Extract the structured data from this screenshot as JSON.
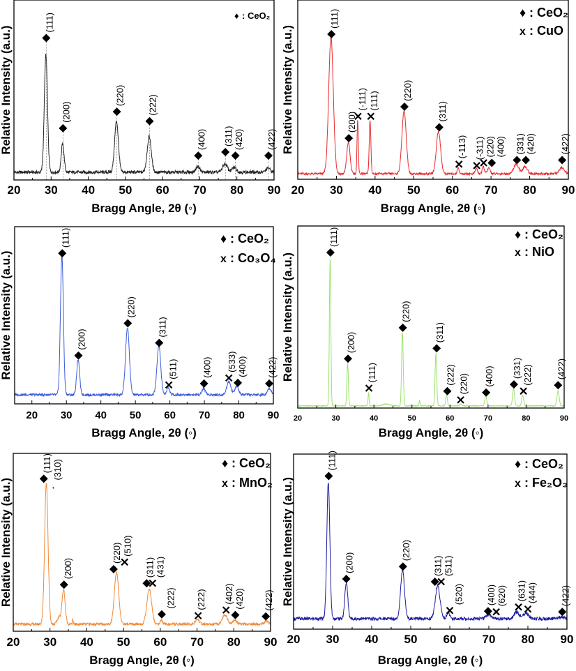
{
  "chart_data": [
    {
      "type": "line",
      "title": "",
      "series_name": "CeO2",
      "color": "#222222",
      "xlabel": "Bragg Angle, 2θ (◦)",
      "ylabel": "Relative Intensity (a.u.)",
      "xlim": [
        20,
        90
      ],
      "ylim": [
        -0.065,
        1.45
      ],
      "xticks": [
        20,
        30,
        40,
        50,
        60,
        70,
        80,
        90
      ],
      "noise": 0.014,
      "legend": [
        {
          "symbol": "♦",
          "text": ": CeO₂"
        }
      ],
      "legend_position": "top-right",
      "dashed_guides": true,
      "peaks": [
        [
          28.6,
          0.99,
          1.0
        ],
        [
          33.1,
          0.24,
          0.9
        ],
        [
          47.6,
          0.43,
          1.2
        ],
        [
          56.4,
          0.3,
          1.3
        ],
        [
          69.5,
          0.05,
          1.2
        ],
        [
          76.8,
          0.07,
          1.5
        ],
        [
          79.3,
          0.04,
          1.4
        ],
        [
          88.4,
          0.035,
          1.3
        ]
      ],
      "markers": [
        {
          "x": 28.7,
          "level": 1.13,
          "type": "d",
          "label": "(111)"
        },
        {
          "x": 33.2,
          "level": 0.37,
          "type": "d",
          "label": "(200)"
        },
        {
          "x": 47.7,
          "level": 0.51,
          "type": "d",
          "label": "(220)"
        },
        {
          "x": 56.5,
          "level": 0.43,
          "type": "d",
          "label": "(222)"
        },
        {
          "x": 69.6,
          "level": 0.14,
          "type": "d",
          "label": "(400)"
        },
        {
          "x": 76.9,
          "level": 0.17,
          "type": "d",
          "label": "(311)"
        },
        {
          "x": 79.6,
          "level": 0.14,
          "type": "d",
          "label": "(420)"
        },
        {
          "x": 88.5,
          "level": 0.14,
          "type": "d",
          "label": "(422)"
        }
      ]
    },
    {
      "type": "line",
      "title": "",
      "series_name": "CeO2-CuO",
      "color": "#e8282a",
      "xlabel": "Bragg Angle, 2θ (◦)",
      "ylabel": "Relative Intensity (a.u.)",
      "xlim": [
        20,
        90
      ],
      "ylim": [
        -0.04,
        1.27
      ],
      "xticks": [
        20,
        30,
        40,
        50,
        60,
        70,
        80,
        90
      ],
      "noise": 0.008,
      "legend": [
        {
          "symbol": "♦",
          "text": ": CeO₂"
        },
        {
          "symbol": "x",
          "text": ": CuO"
        }
      ],
      "legend_position": "top-right",
      "peaks": [
        [
          28.6,
          1.0,
          1.4
        ],
        [
          33.1,
          0.23,
          1.0
        ],
        [
          35.5,
          0.39,
          0.4
        ],
        [
          38.7,
          0.39,
          0.5
        ],
        [
          47.5,
          0.46,
          1.3
        ],
        [
          56.4,
          0.31,
          1.3
        ],
        [
          61.5,
          0.05,
          0.5
        ],
        [
          66.2,
          0.04,
          0.7
        ],
        [
          68.0,
          0.055,
          0.6
        ],
        [
          69.4,
          0.04,
          0.9
        ],
        [
          76.5,
          0.07,
          1.5
        ],
        [
          78.8,
          0.05,
          1.4
        ],
        [
          88.3,
          0.045,
          1.5
        ]
      ],
      "markers": [
        {
          "x": 28.7,
          "level": 1.02,
          "type": "d",
          "label": "(111)"
        },
        {
          "x": 33.2,
          "level": 0.26,
          "type": "d",
          "label": "(200)"
        },
        {
          "x": 35.6,
          "level": 0.42,
          "type": "x",
          "label": "(-111)"
        },
        {
          "x": 38.9,
          "level": 0.42,
          "type": "x",
          "label": "(111)"
        },
        {
          "x": 47.6,
          "level": 0.49,
          "type": "d",
          "label": "(220)"
        },
        {
          "x": 56.6,
          "level": 0.34,
          "type": "d",
          "label": "(311)"
        },
        {
          "x": 61.7,
          "level": 0.07,
          "type": "x",
          "label": "(-113)"
        },
        {
          "x": 66.3,
          "level": 0.06,
          "type": "x",
          "label": "(-311)"
        },
        {
          "x": 68.1,
          "level": 0.08,
          "type": "x",
          "label": "(220)"
        },
        {
          "x": 70.2,
          "level": 0.08,
          "type": "d",
          "label": "(400)"
        },
        {
          "x": 76.7,
          "level": 0.1,
          "type": "d",
          "label": "(331)"
        },
        {
          "x": 79.0,
          "level": 0.1,
          "type": "d",
          "label": "(420)"
        },
        {
          "x": 88.4,
          "level": 0.1,
          "type": "d",
          "label": "(422)"
        }
      ]
    },
    {
      "type": "line",
      "title": "",
      "series_name": "CeO2-Co3O4",
      "color": "#3a5bd9",
      "xlabel": "Bragg Angle, 2θ (◦)",
      "ylabel": "Relative Intensity (a.u.)",
      "xlim": [
        15,
        90
      ],
      "ylim": [
        -0.065,
        1.2
      ],
      "xticks": [
        20,
        30,
        40,
        50,
        60,
        70,
        80,
        90
      ],
      "noise": 0.009,
      "legend": [
        {
          "symbol": "♦",
          "text": ": CeO₂"
        },
        {
          "symbol": "x",
          "text": ": Co₃O₄"
        }
      ],
      "legend_position": "top-right",
      "peaks": [
        [
          28.7,
          1.0,
          1.0
        ],
        [
          33.4,
          0.25,
          1.0
        ],
        [
          47.7,
          0.48,
          1.3
        ],
        [
          56.8,
          0.35,
          1.3
        ],
        [
          59.5,
          0.05,
          1.0
        ],
        [
          69.8,
          0.045,
          1.2
        ],
        [
          77.1,
          0.095,
          1.4
        ],
        [
          79.4,
          0.06,
          1.2
        ],
        [
          88.8,
          0.045,
          1.3
        ]
      ],
      "markers": [
        {
          "x": 28.8,
          "level": 1.01,
          "type": "d",
          "label": "(111)"
        },
        {
          "x": 33.5,
          "level": 0.28,
          "type": "d",
          "label": "(200)"
        },
        {
          "x": 47.8,
          "level": 0.51,
          "type": "d",
          "label": "(220)"
        },
        {
          "x": 56.9,
          "level": 0.37,
          "type": "d",
          "label": "(311)"
        },
        {
          "x": 59.7,
          "level": 0.07,
          "type": "x",
          "label": "(511)"
        },
        {
          "x": 69.9,
          "level": 0.08,
          "type": "d",
          "label": "(400)"
        },
        {
          "x": 77.1,
          "level": 0.12,
          "type": "x",
          "label": "(533)"
        },
        {
          "x": 79.7,
          "level": 0.085,
          "type": "d",
          "label": "(400)"
        },
        {
          "x": 88.8,
          "level": 0.08,
          "type": "d",
          "label": "(422)"
        }
      ]
    },
    {
      "type": "line",
      "title": "",
      "series_name": "CeO2-NiO",
      "color": "#9be36b",
      "xlabel": "Bragg Angle, 2θ (◦)",
      "ylabel": "Relative Intensity (a.u.)",
      "xlim": [
        20,
        90
      ],
      "ylim": [
        -0.015,
        1.22
      ],
      "xticks": [
        20,
        30,
        40,
        50,
        60,
        70,
        80,
        90
      ],
      "noise": 0.003,
      "legend": [
        {
          "symbol": "♦",
          "text": ": CeO₂"
        },
        {
          "symbol": "x",
          "text": ": NiO"
        }
      ],
      "legend_position": "top-right",
      "peaks": [
        [
          28.5,
          1.0,
          0.45
        ],
        [
          33.1,
          0.29,
          0.45
        ],
        [
          38.6,
          0.09,
          0.3
        ],
        [
          43.2,
          0.012,
          2.0
        ],
        [
          47.5,
          0.5,
          0.5
        ],
        [
          52.0,
          0.04,
          0.25
        ],
        [
          56.3,
          0.36,
          0.5
        ],
        [
          59.1,
          0.075,
          0.5
        ],
        [
          62.8,
          0.012,
          0.6
        ],
        [
          69.4,
          0.066,
          0.6
        ],
        [
          76.7,
          0.12,
          0.6
        ],
        [
          79.1,
          0.07,
          0.6
        ],
        [
          88.4,
          0.1,
          0.7
        ]
      ],
      "markers": [
        {
          "x": 28.6,
          "level": 1.04,
          "type": "d",
          "label": "(111)"
        },
        {
          "x": 33.2,
          "level": 0.32,
          "type": "d",
          "label": "(200)"
        },
        {
          "x": 38.7,
          "level": 0.12,
          "type": "x",
          "label": "(111)"
        },
        {
          "x": 47.6,
          "level": 0.53,
          "type": "d",
          "label": "(220)"
        },
        {
          "x": 56.5,
          "level": 0.39,
          "type": "d",
          "label": "(311)"
        },
        {
          "x": 59.3,
          "level": 0.1,
          "type": "d",
          "label": "(222)"
        },
        {
          "x": 62.8,
          "level": 0.04,
          "type": "x",
          "label": "(220)"
        },
        {
          "x": 69.5,
          "level": 0.09,
          "type": "d",
          "label": "(400)"
        },
        {
          "x": 76.8,
          "level": 0.145,
          "type": "d",
          "label": "(331)"
        },
        {
          "x": 79.3,
          "level": 0.1,
          "type": "x",
          "label": "(222)"
        },
        {
          "x": 88.4,
          "level": 0.14,
          "type": "d",
          "label": "(422)"
        }
      ]
    },
    {
      "type": "line",
      "title": "",
      "series_name": "CeO2-MnO2",
      "color": "#f08a3a",
      "xlabel": "Bragg Angle, 2θ (◦)",
      "ylabel": "Relative Intensity (a.u.)",
      "xlim": [
        20,
        90
      ],
      "ylim": [
        -0.05,
        1.21
      ],
      "xticks": [
        20,
        30,
        40,
        50,
        60,
        70,
        80,
        90
      ],
      "noise": 0.009,
      "legend": [
        {
          "symbol": "♦",
          "text": ": CeO₂"
        },
        {
          "symbol": "x",
          "text": " : MnO₂"
        }
      ],
      "legend_position": "top-right",
      "peaks": [
        [
          29.0,
          1.0,
          1.1
        ],
        [
          32.5,
          0.05,
          1.2
        ],
        [
          33.7,
          0.24,
          1.0
        ],
        [
          36.2,
          0.04,
          0.2
        ],
        [
          48.1,
          0.37,
          1.4
        ],
        [
          57.0,
          0.25,
          1.5
        ],
        [
          60.3,
          0.03,
          0.8
        ],
        [
          70.1,
          0.035,
          1.2
        ],
        [
          77.6,
          0.065,
          1.6
        ],
        [
          80.3,
          0.03,
          1.2
        ],
        [
          88.8,
          0.02,
          1.2
        ]
      ],
      "markers": [
        {
          "x": 28.3,
          "level": 1.03,
          "type": "d",
          "label": "(111)"
        },
        {
          "x": 30.9,
          "level": 0.98,
          "type": "c",
          "label": "(310)"
        },
        {
          "x": 33.8,
          "level": 0.28,
          "type": "d",
          "label": "(200)"
        },
        {
          "x": 47.3,
          "level": 0.39,
          "type": "d",
          "label": "(220)"
        },
        {
          "x": 50.3,
          "level": 0.44,
          "type": "x",
          "label": "(510)"
        },
        {
          "x": 56.3,
          "level": 0.29,
          "type": "d",
          "label": "(311)"
        },
        {
          "x": 57.9,
          "level": 0.29,
          "type": "x",
          "label": "(431)"
        },
        {
          "x": 60.4,
          "level": 0.07,
          "type": "d",
          "label": "(222)"
        },
        {
          "x": 70.3,
          "level": 0.06,
          "type": "x",
          "label": "(222)"
        },
        {
          "x": 77.9,
          "level": 0.1,
          "type": "x",
          "label": "(402)"
        },
        {
          "x": 80.4,
          "level": 0.065,
          "type": "d",
          "label": "(420)"
        },
        {
          "x": 88.7,
          "level": 0.055,
          "type": "d",
          "label": "(422)"
        }
      ]
    },
    {
      "type": "line",
      "title": "",
      "series_name": "CeO2-Fe2O3",
      "color": "#1a1aa0",
      "xlabel": "Bragg Angle, 2θ (◦)",
      "ylabel": "Relative Intensity (a.u.)",
      "xlim": [
        20,
        90
      ],
      "ylim": [
        -0.076,
        1.2
      ],
      "xticks": [
        20,
        30,
        40,
        50,
        60,
        70,
        80,
        90
      ],
      "noise": 0.012,
      "legend": [
        {
          "symbol": "♦",
          "text": ": CeO₂"
        },
        {
          "symbol": "x",
          "text": ": Fe₂O₃"
        }
      ],
      "legend_position": "top-right",
      "peaks": [
        [
          28.9,
          1.0,
          0.9
        ],
        [
          33.5,
          0.26,
          0.9
        ],
        [
          47.9,
          0.35,
          1.2
        ],
        [
          56.9,
          0.24,
          1.4
        ],
        [
          59.6,
          0.04,
          1.0
        ],
        [
          70.0,
          0.03,
          1.5
        ],
        [
          77.1,
          0.05,
          1.5
        ],
        [
          79.5,
          0.04,
          1.5
        ],
        [
          88.7,
          0.015,
          1.3
        ]
      ],
      "markers": [
        {
          "x": 29.0,
          "level": 1.04,
          "type": "d",
          "label": "(111)"
        },
        {
          "x": 33.5,
          "level": 0.29,
          "type": "d",
          "label": "(200)"
        },
        {
          "x": 48.0,
          "level": 0.38,
          "type": "d",
          "label": "(220)"
        },
        {
          "x": 56.2,
          "level": 0.27,
          "type": "d",
          "label": "(311)"
        },
        {
          "x": 57.8,
          "level": 0.27,
          "type": "x",
          "label": "(511)"
        },
        {
          "x": 60.0,
          "level": 0.06,
          "type": "x",
          "label": "(520)"
        },
        {
          "x": 69.8,
          "level": 0.055,
          "type": "d",
          "label": "(400)"
        },
        {
          "x": 71.9,
          "level": 0.05,
          "type": "x",
          "label": "(620)"
        },
        {
          "x": 77.6,
          "level": 0.085,
          "type": "x",
          "label": "(631)"
        },
        {
          "x": 80.0,
          "level": 0.07,
          "type": "x",
          "label": "(444)"
        },
        {
          "x": 88.8,
          "level": 0.05,
          "type": "d",
          "label": "(422)"
        }
      ]
    }
  ]
}
